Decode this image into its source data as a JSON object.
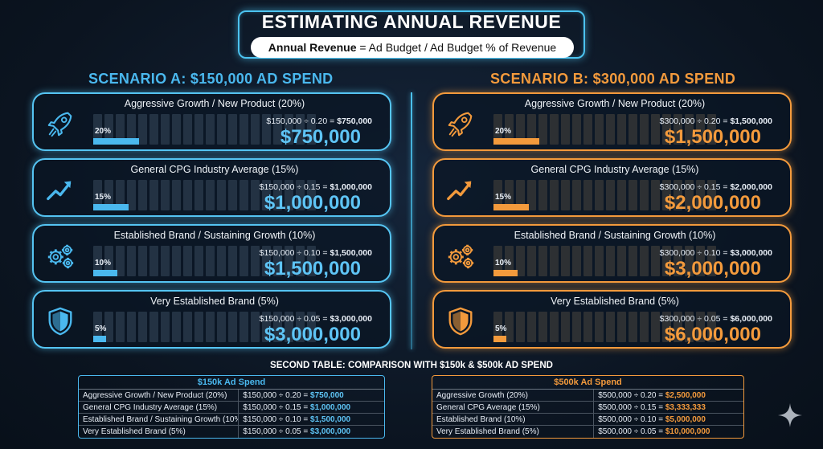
{
  "title": "ESTIMATING ANNUAL REVENUE",
  "formula": {
    "bold": "Annual Revenue",
    "rest": " = Ad Budget / Ad Budget % of Revenue"
  },
  "scenario_a": {
    "title": "SCENARIO A: $150,000 AD SPEND",
    "color": "#4ab8ee",
    "cards": [
      {
        "label": "Aggressive Growth / New Product (20%)",
        "icon": "rocket-icon",
        "pct_label": "20%",
        "fraction": 0.2,
        "calc_prefix": "$150,000 ÷ 0.20 = ",
        "calc_result": "$750,000",
        "big": "$750,000"
      },
      {
        "label": "General CPG Industry Average (15%)",
        "icon": "trend-up-icon",
        "pct_label": "15%",
        "fraction": 0.15,
        "calc_prefix": "$150,000 ÷ 0.15 = ",
        "calc_result": "$1,000,000",
        "big": "$1,000,000"
      },
      {
        "label": "Established Brand / Sustaining Growth (10%)",
        "icon": "gears-icon",
        "pct_label": "10%",
        "fraction": 0.1,
        "calc_prefix": "$150,000 ÷ 0.10 = ",
        "calc_result": "$1,500,000",
        "big": "$1,500,000"
      },
      {
        "label": "Very Established Brand (5%)",
        "icon": "shield-icon",
        "pct_label": "5%",
        "fraction": 0.05,
        "calc_prefix": "$150,000 ÷ 0.05 = ",
        "calc_result": "$3,000,000",
        "big": "$3,000,000"
      }
    ]
  },
  "scenario_b": {
    "title": "SCENARIO B: $300,000 AD SPEND",
    "color": "#f39a3c",
    "cards": [
      {
        "label": "Aggressive Growth / New Product (20%)",
        "icon": "rocket-icon",
        "pct_label": "20%",
        "fraction": 0.2,
        "calc_prefix": "$300,000 ÷ 0.20 = ",
        "calc_result": "$1,500,000",
        "big": "$1,500,000"
      },
      {
        "label": "General CPG Industry Average (15%)",
        "icon": "trend-up-icon",
        "pct_label": "15%",
        "fraction": 0.15,
        "calc_prefix": "$300,000 ÷ 0.15 = ",
        "calc_result": "$2,000,000",
        "big": "$2,000,000"
      },
      {
        "label": "Established Brand / Sustaining Growth (10%)",
        "icon": "gears-icon",
        "pct_label": "10%",
        "fraction": 0.1,
        "calc_prefix": "$300,000 ÷ 0.10 = ",
        "calc_result": "$3,000,000",
        "big": "$3,000,000"
      },
      {
        "label": "Very Established Brand (5%)",
        "icon": "shield-icon",
        "pct_label": "5%",
        "fraction": 0.05,
        "calc_prefix": "$300,000 ÷ 0.05 = ",
        "calc_result": "$6,000,000",
        "big": "$6,000,000"
      }
    ]
  },
  "second_table": {
    "title": "SECOND TABLE: COMPARISON WITH $150k & $500k AD SPEND",
    "table_a": {
      "header": "$150k Ad Spend",
      "rows": [
        {
          "label": "Aggressive Growth / New Product (20%)",
          "calc": "$150,000 ÷ 0.20 = ",
          "result": "$750,000"
        },
        {
          "label": "General CPG Industry Average (15%)",
          "calc": "$150,000 ÷ 0.15 = ",
          "result": "$1,000,000"
        },
        {
          "label": "Established Brand / Sustaining Growth (10%)",
          "calc": "$150,000 ÷ 0.10 = ",
          "result": "$1,500,000"
        },
        {
          "label": "Very Established Brand (5%)",
          "calc": "$150,000 ÷ 0.05 = ",
          "result": "$3,000,000"
        }
      ]
    },
    "table_b": {
      "header": "$500k Ad Spend",
      "rows": [
        {
          "label": "Aggressive Growth (20%)",
          "calc": "$500,000 ÷ 0.20 = ",
          "result": "$2,500,000"
        },
        {
          "label": "General CPG Average (15%)",
          "calc": "$500,000 ÷ 0.15 = ",
          "result": "$3,333,333"
        },
        {
          "label": "Established Brand (10%)",
          "calc": "$500,000 ÷ 0.10 = ",
          "result": "$5,000,000"
        },
        {
          "label": "Very Established Brand (5%)",
          "calc": "$500,000 ÷ 0.05 = ",
          "result": "$10,000,000"
        }
      ]
    }
  }
}
